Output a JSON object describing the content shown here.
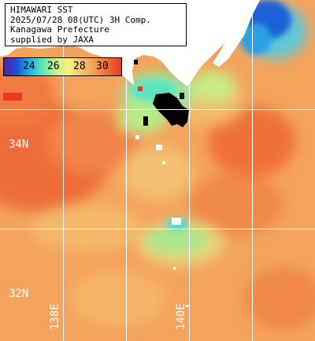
{
  "info": {
    "line1": "HIMAWARI SST",
    "line2": "2025/07/28 08(UTC) 3H Comp.",
    "line3": "Kanagawa Prefecture",
    "line4": "supplied by JAXA"
  },
  "legend": {
    "ticks": [
      "24",
      "26",
      "28",
      "30"
    ],
    "colors": [
      "#5a1fa0",
      "#1e4fd8",
      "#1fb4e6",
      "#5ee8b0",
      "#c8f08a",
      "#f8f07a",
      "#f8c070",
      "#f49a50",
      "#ee6a30",
      "#e83a20"
    ]
  },
  "grid": {
    "lat_labels": [
      "34N",
      "32N"
    ],
    "lon_labels": [
      "138E",
      "140E"
    ]
  },
  "colors": {
    "land": "#ffffff",
    "cloud": "#000000",
    "grid_line": "#ffffff",
    "warm_sea": "#f59a55",
    "hot_sea": "#ee6a35",
    "cool_sea": "#b8e890",
    "cold_sea": "#1f5fd8"
  }
}
